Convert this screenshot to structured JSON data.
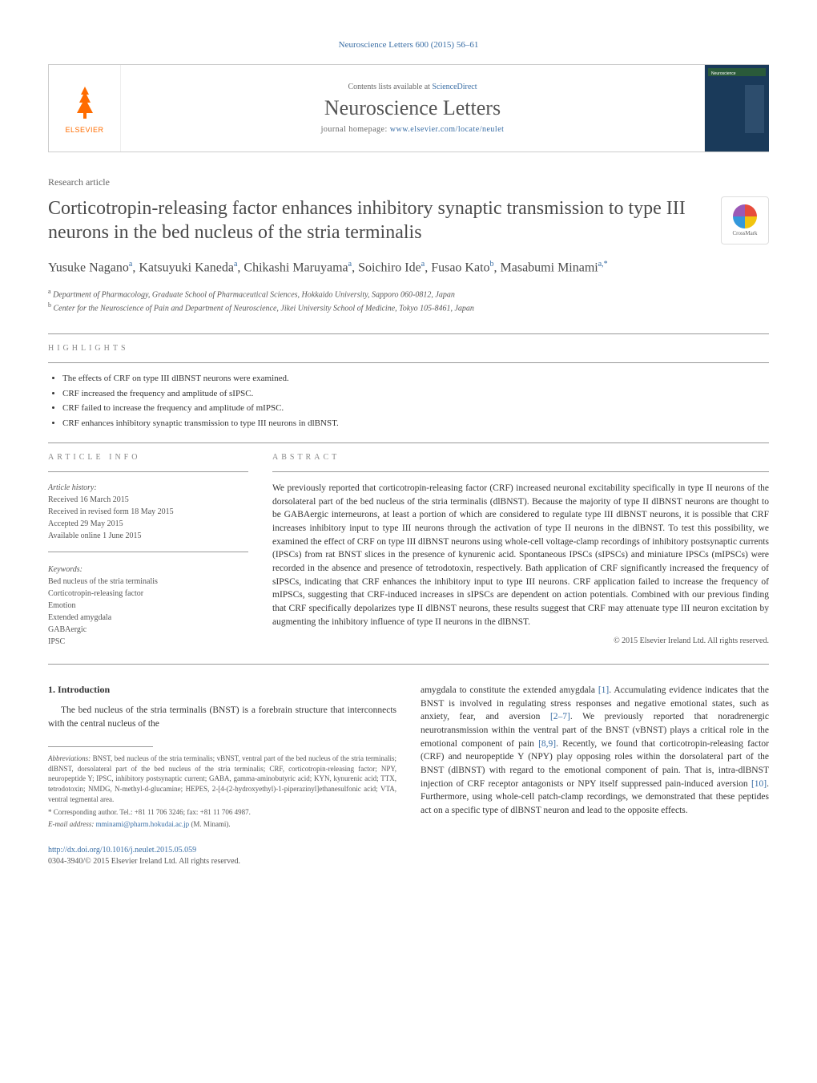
{
  "journal_ref": "Neuroscience Letters 600 (2015) 56–61",
  "header": {
    "elsevier": "ELSEVIER",
    "contents_prefix": "Contents lists available at ",
    "contents_link": "ScienceDirect",
    "journal_name": "Neuroscience Letters",
    "homepage_prefix": "journal homepage: ",
    "homepage_link": "www.elsevier.com/locate/neulet"
  },
  "article_type": "Research article",
  "title": "Corticotropin-releasing factor enhances inhibitory synaptic transmission to type III neurons in the bed nucleus of the stria terminalis",
  "crossmark": "CrossMark",
  "authors_html": "Yusuke Nagano<sup>a</sup>, Katsuyuki Kaneda<sup>a</sup>, Chikashi Maruyama<sup>a</sup>, Soichiro Ide<sup>a</sup>, Fusao Kato<sup>b</sup>, Masabumi Minami<sup>a,*</sup>",
  "affiliations": [
    "Department of Pharmacology, Graduate School of Pharmaceutical Sciences, Hokkaido University, Sapporo 060-0812, Japan",
    "Center for the Neuroscience of Pain and Department of Neuroscience, Jikei University School of Medicine, Tokyo 105-8461, Japan"
  ],
  "aff_markers": [
    "a",
    "b"
  ],
  "highlights_header": "highlights",
  "highlights": [
    "The effects of CRF on type III dlBNST neurons were examined.",
    "CRF increased the frequency and amplitude of sIPSC.",
    "CRF failed to increase the frequency and amplitude of mIPSC.",
    "CRF enhances inhibitory synaptic transmission to type III neurons in dlBNST."
  ],
  "article_info_header": "article info",
  "article_history_label": "Article history:",
  "history": [
    "Received 16 March 2015",
    "Received in revised form 18 May 2015",
    "Accepted 29 May 2015",
    "Available online 1 June 2015"
  ],
  "keywords_label": "Keywords:",
  "keywords": [
    "Bed nucleus of the stria terminalis",
    "Corticotropin-releasing factor",
    "Emotion",
    "Extended amygdala",
    "GABAergic",
    "IPSC"
  ],
  "abstract_header": "abstract",
  "abstract": "We previously reported that corticotropin-releasing factor (CRF) increased neuronal excitability specifically in type II neurons of the dorsolateral part of the bed nucleus of the stria terminalis (dlBNST). Because the majority of type II dlBNST neurons are thought to be GABAergic interneurons, at least a portion of which are considered to regulate type III dlBNST neurons, it is possible that CRF increases inhibitory input to type III neurons through the activation of type II neurons in the dlBNST. To test this possibility, we examined the effect of CRF on type III dlBNST neurons using whole-cell voltage-clamp recordings of inhibitory postsynaptic currents (IPSCs) from rat BNST slices in the presence of kynurenic acid. Spontaneous IPSCs (sIPSCs) and miniature IPSCs (mIPSCs) were recorded in the absence and presence of tetrodotoxin, respectively. Bath application of CRF significantly increased the frequency of sIPSCs, indicating that CRF enhances the inhibitory input to type III neurons. CRF application failed to increase the frequency of mIPSCs, suggesting that CRF-induced increases in sIPSCs are dependent on action potentials. Combined with our previous finding that CRF specifically depolarizes type II dlBNST neurons, these results suggest that CRF may attenuate type III neuron excitation by augmenting the inhibitory influence of type II neurons in the dlBNST.",
  "copyright": "© 2015 Elsevier Ireland Ltd. All rights reserved.",
  "intro_heading": "1.  Introduction",
  "intro_left": "The bed nucleus of the stria terminalis (BNST) is a forebrain structure that interconnects with the central nucleus of the",
  "intro_right": "amygdala to constitute the extended amygdala [1]. Accumulating evidence indicates that the BNST is involved in regulating stress responses and negative emotional states, such as anxiety, fear, and aversion [2–7]. We previously reported that noradrenergic neurotransmission within the ventral part of the BNST (vBNST) plays a critical role in the emotional component of pain [8,9]. Recently, we found that corticotropin-releasing factor (CRF) and neuropeptide Y (NPY) play opposing roles within the dorsolateral part of the BNST (dlBNST) with regard to the emotional component of pain. That is, intra-dlBNST injection of CRF receptor antagonists or NPY itself suppressed pain-induced aversion [10]. Furthermore, using whole-cell patch-clamp recordings, we demonstrated that these peptides act on a specific type of dlBNST neuron and lead to the opposite effects.",
  "abbrev_label": "Abbreviations:",
  "abbrev_text": " BNST, bed nucleus of the stria terminalis; vBNST, ventral part of the bed nucleus of the stria terminalis; dlBNST, dorsolateral part of the bed nucleus of the stria terminalis; CRF, corticotropin-releasing factor; NPY, neuropeptide Y; IPSC, inhibitory postsynaptic current; GABA, gamma-aminobutyric acid; KYN, kynurenic acid; TTX, tetrodotoxin; NMDG, N-methyl-d-glucamine; HEPES, 2-[4-(2-hydroxyethyl)-1-piperazinyl]ethanesulfonic acid; VTA, ventral tegmental area.",
  "corresponding": "* Corresponding author. Tel.: +81 11 706 3246; fax: +81 11 706 4987.",
  "email_label": "E-mail address: ",
  "email": "mminami@pharm.hokudai.ac.jp",
  "email_suffix": " (M. Minami).",
  "doi_link": "http://dx.doi.org/10.1016/j.neulet.2015.05.059",
  "issn_line": "0304-3940/© 2015 Elsevier Ireland Ltd. All rights reserved.",
  "colors": {
    "link": "#3a6ea5",
    "elsevier_orange": "#ff6c00",
    "text": "#333333",
    "muted": "#666666",
    "rule": "#999999"
  }
}
